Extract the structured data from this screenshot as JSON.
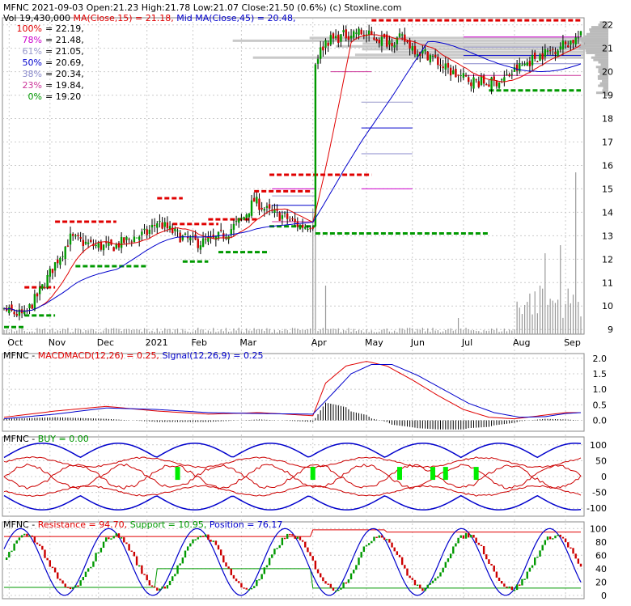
{
  "site": "(c) Stoxline.com",
  "header": {
    "symbol": "MFNC",
    "date": "2021-09-03",
    "open_label": "Open:",
    "open": "21.23",
    "high_label": "High:",
    "high": "21.78",
    "low_label": "Low:",
    "low": "21.07",
    "close_label": "Close:",
    "close": "21.50",
    "change": "(0.6%)",
    "vol_label": "Vol",
    "vol": "19,430,000",
    "ma15_label": "MA(Close,15) = 21.18,",
    "ma45_label": "Mid MA(Close,45) = 20.48,"
  },
  "fib_levels": [
    {
      "label": "100% = 22.19,",
      "color": "#e00000"
    },
    {
      "label": "78% = 21.48,",
      "color": "#cc00cc"
    },
    {
      "label": "61% = 21.05,",
      "color": "#9999cc"
    },
    {
      "label": "50% = 20.69,",
      "color": "#0000cc"
    },
    {
      "label": "38% = 20.34,",
      "color": "#8888cc"
    },
    {
      "label": "23% = 19.84,",
      "color": "#cc3399"
    },
    {
      "label": "0% = 19.20",
      "color": "#009900"
    }
  ],
  "colors": {
    "ma15": "#e00000",
    "ma45": "#0000cc",
    "candle_up": "#009900",
    "candle_down": "#cc0000",
    "grid": "#cccccc",
    "volume_profile": "#bbbbbb"
  },
  "chart_data": [
    {
      "type": "candlestick",
      "panel": "price",
      "x_labels": [
        "Oct",
        "Nov",
        "Dec",
        "2021",
        "Feb",
        "Mar",
        "Apr",
        "May",
        "Jun",
        "Jul",
        "Aug",
        "Sep"
      ],
      "y_ticks": [
        9,
        10,
        11,
        12,
        13,
        14,
        15,
        16,
        17,
        18,
        19,
        20,
        21,
        22
      ],
      "ylim": [
        8.8,
        22.3
      ],
      "grid": true,
      "close_anchors": [
        [
          0,
          9.8
        ],
        [
          8,
          9.6
        ],
        [
          14,
          10.6
        ],
        [
          20,
          11.8
        ],
        [
          26,
          12.9
        ],
        [
          34,
          12.6
        ],
        [
          42,
          12.5
        ],
        [
          50,
          12.9
        ],
        [
          56,
          13.1
        ],
        [
          60,
          13.6
        ],
        [
          64,
          13.3
        ],
        [
          70,
          12.9
        ],
        [
          76,
          12.7
        ],
        [
          82,
          12.8
        ],
        [
          88,
          13.2
        ],
        [
          94,
          13.8
        ],
        [
          98,
          14.5
        ],
        [
          104,
          14.0
        ],
        [
          110,
          13.8
        ],
        [
          116,
          13.4
        ],
        [
          121,
          13.5
        ],
        [
          122,
          20.5
        ],
        [
          126,
          21.3
        ],
        [
          132,
          21.5
        ],
        [
          138,
          21.7
        ],
        [
          144,
          21.5
        ],
        [
          150,
          21.3
        ],
        [
          156,
          21.4
        ],
        [
          162,
          20.9
        ],
        [
          167,
          20.7
        ],
        [
          172,
          20.2
        ],
        [
          178,
          19.8
        ],
        [
          184,
          19.6
        ],
        [
          190,
          19.5
        ],
        [
          196,
          19.7
        ],
        [
          202,
          20.2
        ],
        [
          208,
          20.6
        ],
        [
          214,
          20.9
        ],
        [
          220,
          21.2
        ],
        [
          226,
          21.5
        ]
      ],
      "ma15": {
        "name": "MA(Close,15)",
        "last": 21.18
      },
      "ma45": {
        "name": "Mid MA(Close,45)",
        "last": 20.48
      },
      "fibonacci": [
        22.19,
        21.48,
        21.05,
        20.69,
        20.34,
        19.84,
        19.2
      ]
    },
    {
      "type": "line",
      "panel": "macd",
      "label": "MFNC - MACD",
      "legend": "MACD(12,26) = 0.25, Signal(12,26,9) = 0.25",
      "y_ticks": [
        0.0,
        0.5,
        1.0,
        1.5,
        2.0
      ],
      "ylim": [
        -0.35,
        2.15
      ],
      "macd_anchors": [
        [
          0,
          0.1
        ],
        [
          20,
          0.3
        ],
        [
          40,
          0.45
        ],
        [
          60,
          0.3
        ],
        [
          80,
          0.2
        ],
        [
          100,
          0.25
        ],
        [
          121,
          0.15
        ],
        [
          126,
          1.2
        ],
        [
          134,
          1.75
        ],
        [
          142,
          1.9
        ],
        [
          150,
          1.75
        ],
        [
          160,
          1.3
        ],
        [
          170,
          0.8
        ],
        [
          180,
          0.35
        ],
        [
          190,
          0.1
        ],
        [
          200,
          0.05
        ],
        [
          210,
          0.15
        ],
        [
          220,
          0.25
        ],
        [
          226,
          0.25
        ]
      ],
      "signal_anchors": [
        [
          0,
          0.05
        ],
        [
          20,
          0.2
        ],
        [
          40,
          0.4
        ],
        [
          60,
          0.35
        ],
        [
          80,
          0.25
        ],
        [
          100,
          0.22
        ],
        [
          121,
          0.2
        ],
        [
          128,
          0.8
        ],
        [
          136,
          1.5
        ],
        [
          144,
          1.8
        ],
        [
          152,
          1.8
        ],
        [
          162,
          1.45
        ],
        [
          172,
          1.0
        ],
        [
          182,
          0.55
        ],
        [
          192,
          0.25
        ],
        [
          202,
          0.1
        ],
        [
          212,
          0.12
        ],
        [
          220,
          0.22
        ],
        [
          226,
          0.25
        ]
      ]
    },
    {
      "type": "line",
      "panel": "buy",
      "label": "MFNC - BUY = 0.00",
      "y_ticks": [
        100,
        50,
        0,
        -50,
        -100
      ],
      "ylim": [
        -125,
        125
      ],
      "buy_signal_positions": [
        68,
        121,
        155,
        168,
        173,
        185
      ]
    },
    {
      "type": "line",
      "panel": "stoch",
      "label": "MFNC - Resistance = 94.70, Support = 10.95, Position = 76.17",
      "resistance": 94.7,
      "support": 10.95,
      "position": 76.17,
      "y_ticks": [
        100,
        80,
        60,
        40,
        20,
        0
      ],
      "ylim": [
        -5,
        110
      ]
    }
  ],
  "panel_labels": {
    "macd_prefix": "MFNC - ",
    "macd_name": "MACD",
    "macd_value": "MACD(12,26) = 0.25,",
    "signal_value": "Signal(12,26,9) = 0.25",
    "buy_prefix": "MFNC - ",
    "buy_value": "BUY = 0.00",
    "stoch_prefix": "MFNC - ",
    "resistance_value": "Resistance = 94.70,",
    "support_value": "Support = 10.95,",
    "position_value": "Position = 76.17"
  }
}
